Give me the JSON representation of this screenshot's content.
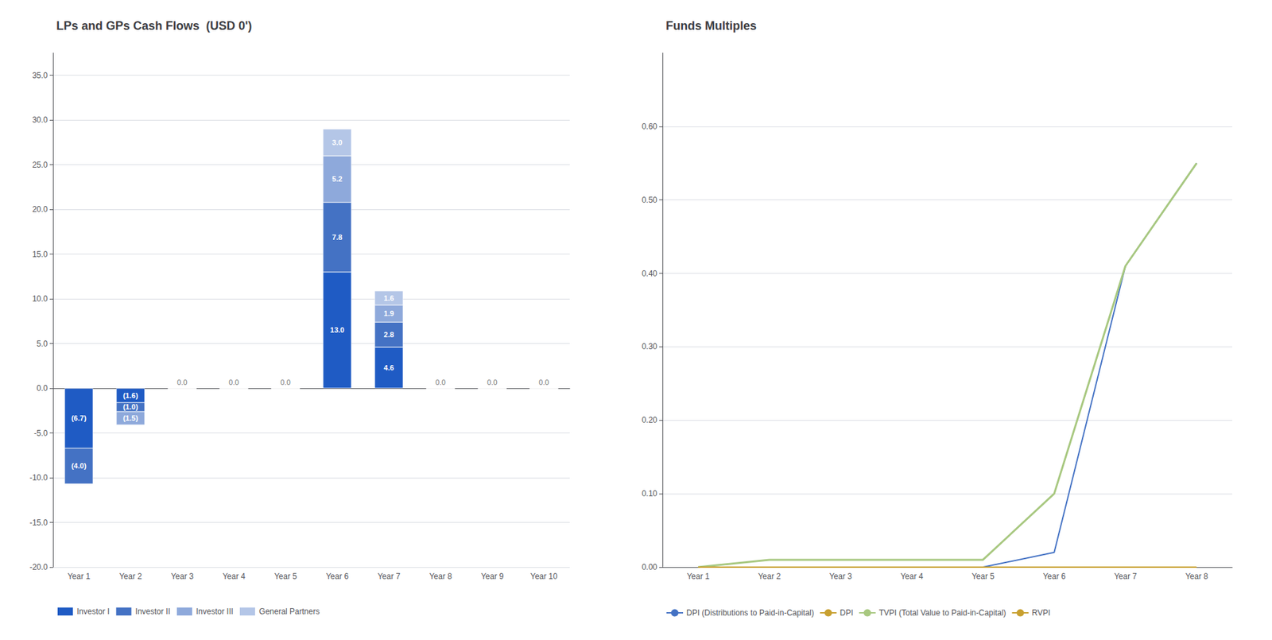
{
  "chart_data": [
    {
      "type": "bar",
      "title": "LPs and GPs Cash Flows  (USD 0')",
      "categories": [
        "Year 1",
        "Year 2",
        "Year 3",
        "Year 4",
        "Year 5",
        "Year 6",
        "Year 7",
        "Year 8",
        "Year 9",
        "Year 10"
      ],
      "series": [
        {
          "name": "Investor I",
          "color": "#1F5BC4",
          "values": [
            -6.7,
            -1.6,
            0.0,
            0.0,
            0.0,
            13.0,
            4.6,
            0.0,
            0.0,
            0.0
          ],
          "value_labels": [
            "(6.7)",
            "(1.6)",
            null,
            null,
            null,
            "13.0",
            "4.6",
            null,
            null,
            null
          ]
        },
        {
          "name": "Investor II",
          "color": "#4472C4",
          "values": [
            -4.0,
            -1.0,
            0.0,
            0.0,
            0.0,
            7.8,
            2.8,
            0.0,
            0.0,
            0.0
          ],
          "value_labels": [
            "(4.0)",
            "(1.0)",
            null,
            null,
            null,
            "7.8",
            "2.8",
            null,
            null,
            null
          ]
        },
        {
          "name": "Investor III",
          "color": "#8EA9DB",
          "values": [
            0.0,
            -1.5,
            0.0,
            0.0,
            0.0,
            5.2,
            1.9,
            0.0,
            0.0,
            0.0
          ],
          "value_labels": [
            null,
            "(1.5)",
            null,
            null,
            null,
            "5.2",
            "1.9",
            null,
            null,
            null
          ]
        },
        {
          "name": "General Partners",
          "color": "#B4C6E7",
          "values": [
            0.0,
            0.0,
            0.0,
            0.0,
            0.0,
            3.0,
            1.6,
            0.0,
            0.0,
            0.0
          ],
          "value_labels": [
            null,
            null,
            null,
            null,
            null,
            "3.0",
            "1.6",
            null,
            null,
            null
          ]
        }
      ],
      "stacked": true,
      "data_labels": true,
      "annotations": [
        {
          "x": "Year 3",
          "y": 0,
          "text": "0.0"
        },
        {
          "x": "Year 4",
          "y": 0,
          "text": "0.0"
        },
        {
          "x": "Year 5",
          "y": 0,
          "text": "0.0"
        },
        {
          "x": "Year 8",
          "y": 0,
          "text": "0.0"
        },
        {
          "x": "Year 9",
          "y": 0,
          "text": "0.0"
        },
        {
          "x": "Year 10",
          "y": 0,
          "text": "0.0"
        }
      ],
      "ylim": [
        -20.0,
        37.5
      ],
      "yticks": [
        {
          "value": -20,
          "label": "-20.0"
        },
        {
          "value": -15,
          "label": "-15.0"
        },
        {
          "value": -10,
          "label": "-10.0"
        },
        {
          "value": -5,
          "label": "-5.0"
        },
        {
          "value": 0,
          "label": "0.0"
        },
        {
          "value": 5,
          "label": "5.0"
        },
        {
          "value": 10,
          "label": "10.0"
        },
        {
          "value": 15,
          "label": "15.0"
        },
        {
          "value": 20,
          "label": "20.0"
        },
        {
          "value": 25,
          "label": "25.0"
        },
        {
          "value": 30,
          "label": "30.0"
        },
        {
          "value": 35,
          "label": "35.0"
        }
      ],
      "grid": true,
      "legend": "bottom"
    },
    {
      "type": "line",
      "title": "Funds Multiples",
      "categories": [
        "Year 1",
        "Year 2",
        "Year 3",
        "Year 4",
        "Year 5",
        "Year 6",
        "Year 7",
        "Year 8"
      ],
      "series": [
        {
          "name": "DPI (Distributions to Paid-in-Capital)",
          "color": "#4472C4",
          "values": [
            0.0,
            0.0,
            0.0,
            0.0,
            0.0,
            0.02,
            0.41,
            0.55
          ]
        },
        {
          "name": "DPI",
          "color": "#C8A030",
          "values": [
            null,
            null,
            null,
            null,
            null,
            null,
            null,
            null
          ]
        },
        {
          "name": "TVPI (Total Value to Paid-in-Capital)",
          "color": "#A8C880",
          "values": [
            0.0,
            0.01,
            0.01,
            0.01,
            0.01,
            0.1,
            0.41,
            0.55
          ]
        },
        {
          "name": "RVPI",
          "color": "#C8A030",
          "values": [
            0.0,
            0.0,
            0.0,
            0.0,
            0.0,
            0.0,
            0.0,
            0.0
          ]
        }
      ],
      "ylim": [
        0.0,
        0.7
      ],
      "yticks": [
        {
          "value": 0,
          "label": "0.00"
        },
        {
          "value": 0.1,
          "label": "0.10"
        },
        {
          "value": 0.2,
          "label": "0.20"
        },
        {
          "value": 0.3,
          "label": "0.30"
        },
        {
          "value": 0.4,
          "label": "0.40"
        },
        {
          "value": 0.5,
          "label": "0.50"
        },
        {
          "value": 0.6,
          "label": "0.60"
        }
      ],
      "grid": true,
      "legend": "bottom"
    }
  ]
}
